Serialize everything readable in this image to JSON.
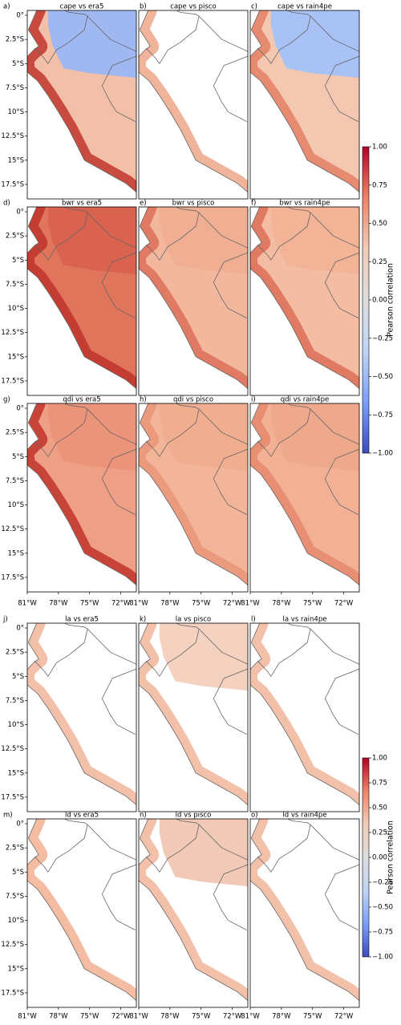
{
  "figures": [
    {
      "panels": [
        {
          "label": "a)",
          "title": "cape vs era5",
          "land": "#f2c0a8",
          "coast": "#c94a3e",
          "north": "#9fb8f2"
        },
        {
          "label": "b)",
          "title": "cape vs pisco",
          "land": "#ffffff",
          "coast": "#f0b49a",
          "north": "#ffffff"
        },
        {
          "label": "c)",
          "title": "cape vs rain4pe",
          "land": "#f3c7b0",
          "coast": "#e68a70",
          "north": "#a9c2f6"
        },
        {
          "label": "d)",
          "title": "bwr vs era5",
          "land": "#e0755c",
          "coast": "#c43c32",
          "north": "#d9634e"
        },
        {
          "label": "e)",
          "title": "bwr vs pisco",
          "land": "#f2b79d",
          "coast": "#e07a62",
          "north": "#f0af93"
        },
        {
          "label": "f)",
          "title": "bwr vs rain4pe",
          "land": "#f4bca2",
          "coast": "#e07a62",
          "north": "#f2b397"
        },
        {
          "label": "g)",
          "title": "qdi vs era5",
          "land": "#ef9f85",
          "coast": "#c84438",
          "north": "#ec9479"
        },
        {
          "label": "h)",
          "title": "qdi vs pisco",
          "land": "#f3b599",
          "coast": "#ec9a7e",
          "north": "#f0ad90"
        },
        {
          "label": "i)",
          "title": "qdi vs rain4pe",
          "land": "#f2b195",
          "coast": "#e88e72",
          "north": "#eea88b"
        }
      ],
      "xlim": [
        -81,
        -70.5
      ],
      "ylim": [
        -19,
        0.5
      ],
      "xticks": [
        {
          "value": -81,
          "label": "81°W"
        },
        {
          "value": -78,
          "label": "78°W"
        },
        {
          "value": -75,
          "label": "75°W"
        },
        {
          "value": -72,
          "label": "72°W"
        }
      ],
      "yticks": [
        {
          "value": 0,
          "label": "0°"
        },
        {
          "value": -2.5,
          "label": "2.5°S"
        },
        {
          "value": -5,
          "label": "5°S"
        },
        {
          "value": -7.5,
          "label": "7.5°S"
        },
        {
          "value": -10,
          "label": "10°S"
        },
        {
          "value": -12.5,
          "label": "12.5°S"
        },
        {
          "value": -15,
          "label": "15°S"
        },
        {
          "value": -17.5,
          "label": "17.5°S"
        }
      ],
      "colorbar": {
        "label": "Pearson correlation",
        "lim": [
          -1,
          1
        ],
        "colormap": "coolwarm",
        "ticks": [
          {
            "value": 1,
            "label": "1.00"
          },
          {
            "value": 0.75,
            "label": "0.75"
          },
          {
            "value": 0.5,
            "label": "0.50"
          },
          {
            "value": 0.25,
            "label": "0.25"
          },
          {
            "value": 0,
            "label": "0.00"
          },
          {
            "value": -0.25,
            "label": "−0.25"
          },
          {
            "value": -0.5,
            "label": "−0.50"
          },
          {
            "value": -0.75,
            "label": "−0.75"
          },
          {
            "value": -1,
            "label": "−1.00"
          }
        ]
      }
    },
    {
      "panels": [
        {
          "label": "j)",
          "title": "la vs era5",
          "land": "#ffffff",
          "coast": "#f3c1a9",
          "north": "#ffffff"
        },
        {
          "label": "k)",
          "title": "la vs pisco",
          "land": "#ffffff",
          "coast": "#f3c1a9",
          "north": "#f5d2c0"
        },
        {
          "label": "l)",
          "title": "la vs rain4pe",
          "land": "#ffffff",
          "coast": "#f3c1a9",
          "north": "#ffffff"
        },
        {
          "label": "m)",
          "title": "ld vs era5",
          "land": "#ffffff",
          "coast": "#f3bca3",
          "north": "#ffffff"
        },
        {
          "label": "n)",
          "title": "ld vs pisco",
          "land": "#ffffff",
          "coast": "#f3c1a9",
          "north": "#f2c9b6"
        },
        {
          "label": "o)",
          "title": "ld vs rain4pe",
          "land": "#ffffff",
          "coast": "#f3c1a9",
          "north": "#ffffff"
        }
      ],
      "xlim": [
        -81,
        -70.5
      ],
      "ylim": [
        -19,
        0.5
      ],
      "xticks": [
        {
          "value": -81,
          "label": "81°W"
        },
        {
          "value": -78,
          "label": "78°W"
        },
        {
          "value": -75,
          "label": "75°W"
        },
        {
          "value": -72,
          "label": "72°W"
        }
      ],
      "yticks": [
        {
          "value": 0,
          "label": "0°"
        },
        {
          "value": -2.5,
          "label": "2.5°S"
        },
        {
          "value": -5,
          "label": "5°S"
        },
        {
          "value": -7.5,
          "label": "7.5°S"
        },
        {
          "value": -10,
          "label": "10°S"
        },
        {
          "value": -12.5,
          "label": "12.5°S"
        },
        {
          "value": -15,
          "label": "15°S"
        },
        {
          "value": -17.5,
          "label": "17.5°S"
        }
      ],
      "colorbar": {
        "label": "Pearson correlation",
        "lim": [
          -1,
          1
        ],
        "colormap": "coolwarm",
        "ticks": [
          {
            "value": 1,
            "label": "1.00"
          },
          {
            "value": 0.75,
            "label": "0.75"
          },
          {
            "value": 0.5,
            "label": "0.50"
          },
          {
            "value": 0.25,
            "label": "0.25"
          },
          {
            "value": 0,
            "label": "0.00"
          },
          {
            "value": -0.25,
            "label": "−0.25"
          },
          {
            "value": -0.5,
            "label": "−0.50"
          },
          {
            "value": -0.75,
            "label": "−0.75"
          },
          {
            "value": -1,
            "label": "−1.00"
          }
        ]
      }
    }
  ]
}
